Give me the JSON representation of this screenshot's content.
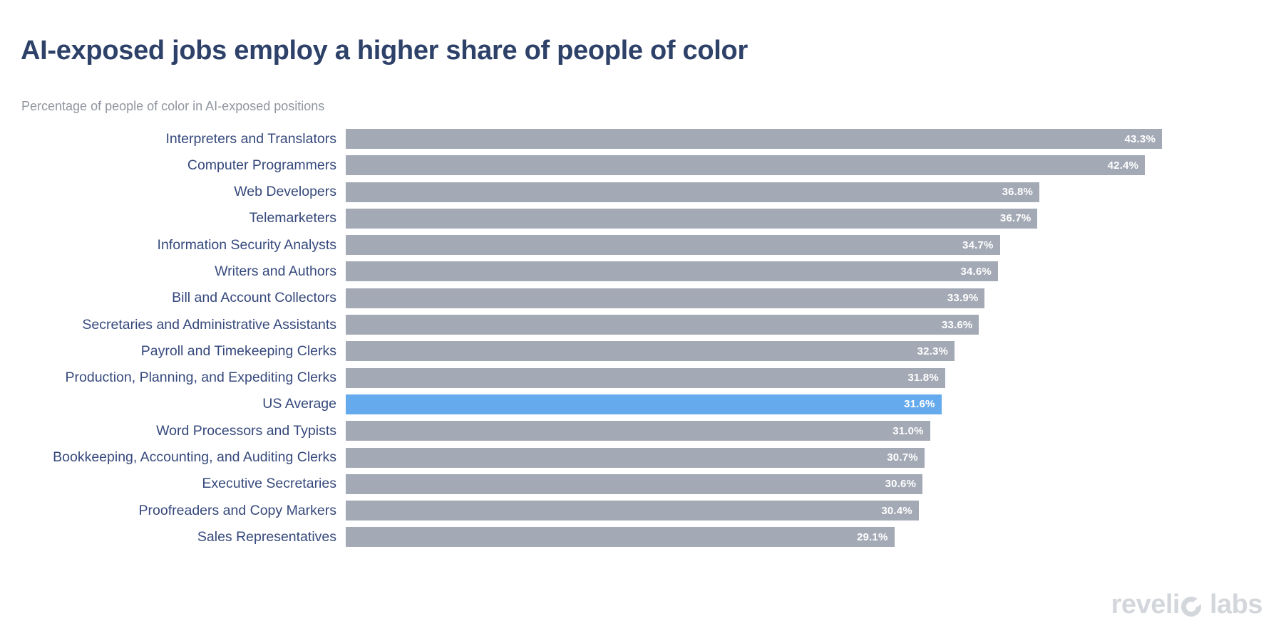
{
  "chart_data": {
    "type": "bar",
    "orientation": "horizontal",
    "title": "AI-exposed jobs employ a higher share of people of color",
    "subtitle": "Percentage of people of color in AI-exposed positions",
    "xlabel": "",
    "ylabel": "",
    "xlim": [
      0,
      43.3
    ],
    "grid": false,
    "legend": false,
    "value_suffix": "%",
    "categories": [
      "Interpreters and Translators",
      "Computer Programmers",
      "Web Developers",
      "Telemarketers",
      "Information Security Analysts",
      "Writers and Authors",
      "Bill and Account Collectors",
      "Secretaries and Administrative Assistants",
      "Payroll and Timekeeping Clerks",
      "Production, Planning, and Expediting Clerks",
      "US Average",
      "Word Processors and Typists",
      "Bookkeeping, Accounting, and Auditing Clerks",
      "Executive Secretaries",
      "Proofreaders and Copy Markers",
      "Sales Representatives"
    ],
    "values": [
      43.3,
      42.4,
      36.8,
      36.7,
      34.7,
      34.6,
      33.9,
      33.6,
      32.3,
      31.8,
      31.6,
      31.0,
      30.7,
      30.6,
      30.4,
      29.1
    ],
    "value_labels": [
      "43.3%",
      "42.4%",
      "36.8%",
      "36.7%",
      "34.7%",
      "34.6%",
      "33.9%",
      "33.6%",
      "32.3%",
      "31.8%",
      "31.6%",
      "31.0%",
      "30.7%",
      "30.6%",
      "30.4%",
      "29.1%"
    ],
    "highlight_index": 10,
    "highlight_category": "US Average",
    "colors": {
      "bar": "#a3a9b5",
      "highlight_bar": "#64aaec",
      "value_label": "#ffffff",
      "category_label": "#36497c",
      "title": "#2d4169",
      "subtitle": "#90959e"
    }
  },
  "branding": {
    "logo_text": "revelio labs",
    "logo_word1_prefix": "reveli",
    "logo_word2": "labs",
    "logo_color": "#d3d6db"
  }
}
